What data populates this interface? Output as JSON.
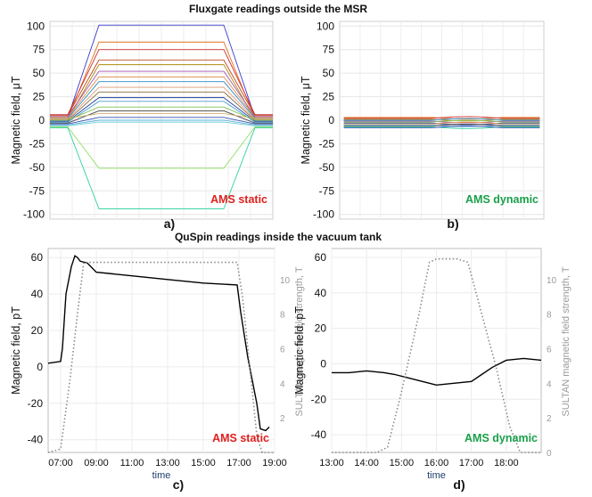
{
  "titles": {
    "top": "Fluxgate readings outside the MSR",
    "bottom": "QuSpin readings inside the vacuum tank"
  },
  "colors": {
    "static": "#e0201f",
    "dynamic": "#1aa04a",
    "right_axis": "#9a9a9a",
    "time_label": "#1d3e6e"
  },
  "chart_data": [
    {
      "panel": "a)",
      "type": "line",
      "annotation": "AMS static",
      "ylabel": "Magnetic field,  μT",
      "xlabel": "",
      "ylim": [
        -105,
        105
      ],
      "xlim": [
        0,
        100
      ],
      "grid": true,
      "yticks": [
        100,
        75,
        50,
        25,
        0,
        -25,
        -50,
        -75,
        -100
      ],
      "ramp_x": [
        0,
        8,
        22,
        78,
        92,
        100
      ],
      "series": [
        {
          "color": "#3b3bd0",
          "levels": [
            3,
            101
          ]
        },
        {
          "color": "#e0701a",
          "levels": [
            2,
            83
          ]
        },
        {
          "color": "#d03030",
          "levels": [
            6,
            75
          ]
        },
        {
          "color": "#c04a20",
          "levels": [
            5,
            64
          ]
        },
        {
          "color": "#b08a10",
          "levels": [
            1,
            59
          ]
        },
        {
          "color": "#a050b0",
          "levels": [
            4,
            52
          ]
        },
        {
          "color": "#e09050",
          "levels": [
            3,
            46
          ]
        },
        {
          "color": "#2a8ac0",
          "levels": [
            2,
            41
          ]
        },
        {
          "color": "#e0a080",
          "levels": [
            1,
            35
          ]
        },
        {
          "color": "#8a6a3a",
          "levels": [
            0,
            30
          ]
        },
        {
          "color": "#2040a0",
          "levels": [
            -1,
            24
          ]
        },
        {
          "color": "#4a9ad0",
          "levels": [
            -2,
            20
          ]
        },
        {
          "color": "#80c050",
          "levels": [
            0,
            14
          ]
        },
        {
          "color": "#404040",
          "levels": [
            -3,
            10
          ]
        },
        {
          "color": "#d0b070",
          "levels": [
            2,
            7
          ]
        },
        {
          "color": "#3050b0",
          "levels": [
            -4,
            3
          ]
        },
        {
          "color": "#5ab0e0",
          "levels": [
            -5,
            0
          ]
        },
        {
          "color": "#70d0d0",
          "levels": [
            -6,
            -2
          ]
        },
        {
          "color": "#90e060",
          "levels": [
            -7,
            -51
          ]
        },
        {
          "color": "#30d0a0",
          "levels": [
            -8,
            -94
          ]
        }
      ]
    },
    {
      "panel": "b)",
      "type": "line",
      "annotation": "AMS dynamic",
      "ylabel": "Magnetic field,  μT",
      "xlabel": "",
      "ylim": [
        -105,
        105
      ],
      "xlim": [
        0,
        100
      ],
      "grid": true,
      "yticks": [
        100,
        75,
        50,
        25,
        0,
        -25,
        -50,
        -75,
        -100
      ],
      "series": [
        {
          "color": "#e0701a",
          "level": 3
        },
        {
          "color": "#d03030",
          "level": 2
        },
        {
          "color": "#b08a10",
          "level": 1
        },
        {
          "color": "#2a8ac0",
          "level": 0
        },
        {
          "color": "#a050b0",
          "level": -1
        },
        {
          "color": "#80c050",
          "level": -2
        },
        {
          "color": "#2040a0",
          "level": -3
        },
        {
          "color": "#e09050",
          "level": -4
        },
        {
          "color": "#5ab0e0",
          "level": -5
        },
        {
          "color": "#404040",
          "level": -6
        },
        {
          "color": "#30d0a0",
          "level": -7
        },
        {
          "color": "#3050b0",
          "level": -8
        }
      ]
    },
    {
      "panel": "c)",
      "type": "line",
      "annotation": "AMS static",
      "ylabel": "Magnetic field,  pT",
      "y2label": "SULTAN magnetic field strength, T",
      "xlabel": "time",
      "xlim": [
        6.3,
        19.0
      ],
      "ylim": [
        -47,
        65
      ],
      "y2lim": [
        0,
        11.8
      ],
      "xticks": [
        "07:00",
        "09:00",
        "11:00",
        "13:00",
        "15:00",
        "17:00",
        "19:00"
      ],
      "xtick_values": [
        7,
        9,
        11,
        13,
        15,
        17,
        19
      ],
      "yticks": [
        60,
        40,
        20,
        0,
        -20,
        -40
      ],
      "y2ticks": [
        10,
        8,
        6,
        4,
        2
      ],
      "series": [
        {
          "name": "QuSpin",
          "style": "solid",
          "color": "#000000",
          "x": [
            6.3,
            7.0,
            7.1,
            7.3,
            7.6,
            7.8,
            7.95,
            8.1,
            8.5,
            9.0,
            11.0,
            13.0,
            15.0,
            16.9,
            17.1,
            17.5,
            18.0,
            18.2,
            18.5,
            18.7
          ],
          "y": [
            2,
            3,
            10,
            40,
            55,
            61,
            60,
            58,
            57,
            52,
            50,
            48,
            46,
            45,
            30,
            5,
            -20,
            -34,
            -35,
            -33
          ]
        },
        {
          "name": "SULTAN field",
          "style": "dotted",
          "color": "#8a8a8a",
          "x": [
            6.3,
            7.0,
            7.5,
            8.0,
            8.3,
            16.9,
            17.2,
            17.6,
            18.0,
            18.3,
            19.0
          ],
          "y": [
            0,
            0.2,
            4,
            8.5,
            11,
            11,
            9,
            5,
            1,
            0,
            0
          ]
        }
      ]
    },
    {
      "panel": "d)",
      "type": "line",
      "annotation": "AMS dynamic",
      "ylabel": "Magnetic field,  pT",
      "y2label": "SULTAN magnetic field strength, T",
      "xlabel": "time",
      "xlim": [
        13.0,
        19.0
      ],
      "ylim": [
        -50,
        65
      ],
      "y2lim": [
        0,
        11.8
      ],
      "xticks": [
        "13:00",
        "14:00",
        "15:00",
        "16:00",
        "17:00",
        "18:00"
      ],
      "xtick_values": [
        13,
        14,
        15,
        16,
        17,
        18
      ],
      "yticks": [
        60,
        40,
        20,
        0,
        -20,
        -40
      ],
      "y2ticks": [
        10,
        8,
        6,
        4,
        2,
        0
      ],
      "series": [
        {
          "name": "QuSpin",
          "style": "solid",
          "color": "#000000",
          "x": [
            13.0,
            13.5,
            14.0,
            14.5,
            14.8,
            15.2,
            15.6,
            16.0,
            16.5,
            17.0,
            17.3,
            17.6,
            18.0,
            18.5,
            19.0
          ],
          "y": [
            -5,
            -5,
            -4,
            -5,
            -6,
            -8,
            -10,
            -12,
            -11,
            -10,
            -6,
            -2,
            2,
            3,
            2
          ]
        },
        {
          "name": "SULTAN field",
          "style": "dotted",
          "color": "#8a8a8a",
          "x": [
            13.0,
            14.3,
            14.6,
            15.0,
            15.5,
            15.8,
            16.0,
            16.6,
            16.9,
            17.3,
            17.7,
            18.1,
            18.4,
            19.0
          ],
          "y": [
            0,
            0,
            0.3,
            3.5,
            8,
            11,
            11.2,
            11.2,
            11,
            8,
            5,
            1.5,
            0,
            0
          ]
        }
      ]
    }
  ]
}
